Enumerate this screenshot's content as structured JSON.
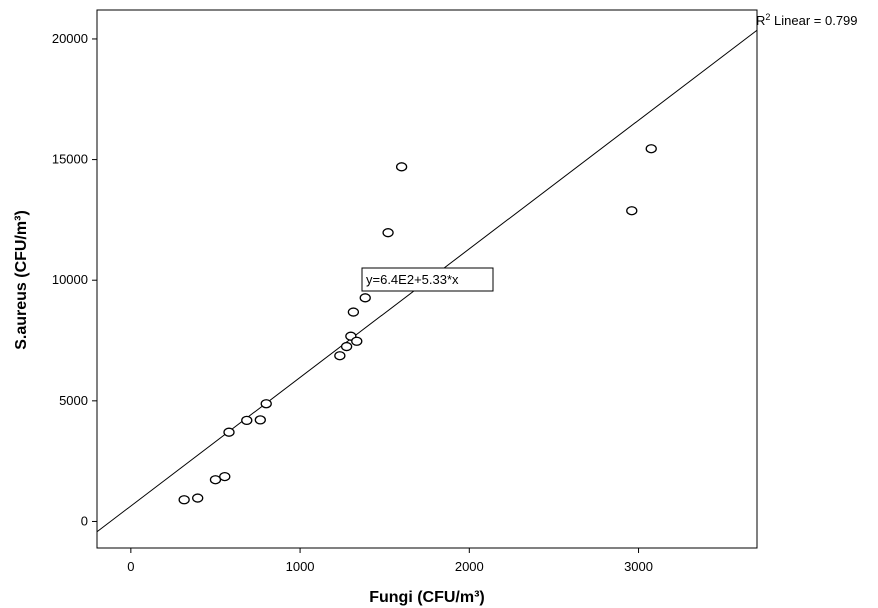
{
  "chart_data": {
    "type": "scatter",
    "xlabel": "Fungi (CFU/m³)",
    "ylabel": "S.aureus (CFU/m³)",
    "xlim": [
      -200,
      3700
    ],
    "ylim": [
      -1100,
      21200
    ],
    "x_ticks": [
      0,
      1000,
      2000,
      3000
    ],
    "y_ticks": [
      0,
      5000,
      10000,
      15000,
      20000
    ],
    "x_tick_labels": [
      "0",
      "1000",
      "2000",
      "3000"
    ],
    "y_tick_labels": [
      "0",
      "5000",
      "10000",
      "15000",
      "20000"
    ],
    "grid": false,
    "legend": "none",
    "points": [
      {
        "x": 315,
        "y": 900
      },
      {
        "x": 395,
        "y": 970
      },
      {
        "x": 500,
        "y": 1730
      },
      {
        "x": 555,
        "y": 1860
      },
      {
        "x": 580,
        "y": 3700
      },
      {
        "x": 685,
        "y": 4190
      },
      {
        "x": 765,
        "y": 4210
      },
      {
        "x": 800,
        "y": 4880
      },
      {
        "x": 1235,
        "y": 6870
      },
      {
        "x": 1275,
        "y": 7250
      },
      {
        "x": 1300,
        "y": 7680
      },
      {
        "x": 1335,
        "y": 7470
      },
      {
        "x": 1315,
        "y": 8680
      },
      {
        "x": 1385,
        "y": 9270
      },
      {
        "x": 1520,
        "y": 11970
      },
      {
        "x": 1600,
        "y": 14700
      },
      {
        "x": 2960,
        "y": 12880
      },
      {
        "x": 3075,
        "y": 15450
      }
    ],
    "fit_line": {
      "intercept": 640,
      "slope": 5.33
    },
    "fit_equation_label": "y=6.4E2+5.33*x",
    "r2_label_prefix": "R",
    "r2_label_sup": "2",
    "r2_label_rest": " Linear = 0.799",
    "marker": "open-circle",
    "colors": {
      "marker": "#000000",
      "line": "#000000",
      "axis": "#000000"
    }
  }
}
